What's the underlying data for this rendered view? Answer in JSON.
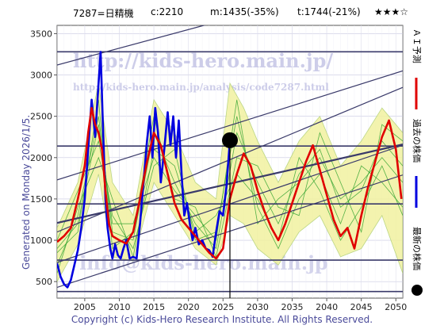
{
  "header": {
    "code": "7287=日精機",
    "current": "c:2210",
    "medium": "m:1435(-35%)",
    "target": "t:1744(-21%)",
    "rating": "★★★☆"
  },
  "side_label": "Generated on Monday 2026/1/5.",
  "footer": "Copyright (c) Kids-Hero Research Institute. All Rights Reserved.",
  "watermarks": {
    "site": "http://kids-hero.main.jp/",
    "page": "http://kids-hero.main.jp/analysis/code7287.html",
    "email": "info@kids-hero.main.jp"
  },
  "legend": [
    {
      "label": "ＡＩ予測",
      "color": "#e00000",
      "marker": "line"
    },
    {
      "label": "過去の株価",
      "color": "#0000e0",
      "marker": "line"
    },
    {
      "label": "最新の株価",
      "color": "#000000",
      "marker": "dot"
    }
  ],
  "colors": {
    "grid": "#c8c8e0",
    "trend_line": "#3a3a6a",
    "band_fill": "#f2f2a0",
    "band_stroke": "#b0d070",
    "sim_line": "#2ca02c",
    "past": "#0000e0",
    "forecast": "#e00000"
  },
  "chart_data": {
    "type": "line",
    "xlim": [
      2001,
      2051
    ],
    "ylim": [
      300,
      3600
    ],
    "xticks": [
      2005,
      2010,
      2015,
      2020,
      2025,
      2030,
      2035,
      2040,
      2045,
      2050
    ],
    "yticks": [
      500,
      1000,
      1500,
      2000,
      2500,
      3000,
      3500
    ],
    "grid": true,
    "legend_position": "right-vertical",
    "latest": {
      "x": 2026.0,
      "y": 2210
    },
    "horizontal_levels": [
      3280,
      2140,
      1440,
      760,
      380
    ],
    "channel_lines": [
      {
        "x": [
          2001,
          2051
        ],
        "y": [
          430,
          1790
        ]
      },
      {
        "x": [
          2001,
          2051
        ],
        "y": [
          730,
          2150
        ]
      },
      {
        "x": [
          2001,
          2051
        ],
        "y": [
          1100,
          2850
        ]
      },
      {
        "x": [
          2001,
          2051
        ],
        "y": [
          1730,
          3050
        ]
      },
      {
        "x": [
          2001,
          2024
        ],
        "y": [
          3120,
          3640
        ]
      },
      {
        "x": [
          2001,
          2051
        ],
        "y": [
          1210,
          2160
        ]
      }
    ],
    "series": [
      {
        "name": "過去の株価",
        "x": [
          2001.0,
          2001.5,
          2002.0,
          2002.5,
          2003.0,
          2003.5,
          2004.0,
          2004.5,
          2005.0,
          2005.5,
          2006.0,
          2006.5,
          2007.0,
          2007.3,
          2007.6,
          2008.0,
          2008.3,
          2008.7,
          2009.0,
          2009.4,
          2009.8,
          2010.2,
          2010.6,
          2011.0,
          2011.5,
          2012.0,
          2012.5,
          2013.0,
          2013.5,
          2014.0,
          2014.4,
          2014.8,
          2015.2,
          2015.6,
          2016.0,
          2016.5,
          2017.0,
          2017.4,
          2017.8,
          2018.2,
          2018.6,
          2019.0,
          2019.4,
          2019.8,
          2020.2,
          2020.6,
          2021.0,
          2021.5,
          2022.0,
          2022.5,
          2023.0,
          2023.5,
          2024.0,
          2024.5,
          2025.0,
          2025.5,
          2026.0
        ],
        "y": [
          720,
          560,
          470,
          430,
          520,
          700,
          880,
          1150,
          1500,
          2100,
          2700,
          2250,
          2900,
          3280,
          2450,
          1500,
          1150,
          900,
          780,
          950,
          820,
          780,
          900,
          1000,
          780,
          800,
          780,
          1200,
          1700,
          2200,
          2500,
          2000,
          2600,
          2300,
          1700,
          2100,
          2550,
          2150,
          2500,
          2000,
          2450,
          1800,
          1300,
          1450,
          1200,
          1000,
          1150,
          950,
          1000,
          900,
          880,
          800,
          1100,
          1350,
          1300,
          1650,
          2210
        ]
      },
      {
        "name": "ＡＩ予測",
        "x": [
          2001.0,
          2002.0,
          2003.0,
          2004.0,
          2005.0,
          2005.5,
          2006.0,
          2006.5,
          2007.0,
          2007.5,
          2008.0,
          2008.5,
          2009.0,
          2010.0,
          2011.0,
          2012.0,
          2013.0,
          2014.0,
          2015.0,
          2016.0,
          2017.0,
          2018.0,
          2019.0,
          2020.0,
          2021.0,
          2022.0,
          2023.0,
          2024.0,
          2025.0,
          2026.0,
          2027.0,
          2028.0,
          2029.0,
          2030.0,
          2031.0,
          2032.0,
          2033.0,
          2034.0,
          2035.0,
          2036.0,
          2037.0,
          2038.0,
          2039.0,
          2040.0,
          2041.0,
          2042.0,
          2043.0,
          2044.0,
          2045.0,
          2046.0,
          2047.0,
          2048.0,
          2049.0,
          2050.0,
          2050.8
        ],
        "y": [
          980,
          1050,
          1150,
          1500,
          1900,
          2300,
          2600,
          2400,
          2300,
          2100,
          1600,
          1200,
          1050,
          1000,
          960,
          1100,
          1500,
          1950,
          2300,
          2150,
          1800,
          1450,
          1250,
          1150,
          1050,
          950,
          850,
          780,
          900,
          1500,
          1800,
          2050,
          1900,
          1600,
          1350,
          1150,
          1000,
          1200,
          1450,
          1700,
          1950,
          2150,
          1850,
          1550,
          1250,
          1050,
          1150,
          900,
          1300,
          1650,
          1950,
          2250,
          2450,
          2100,
          1500
        ]
      }
    ],
    "simulations": [
      {
        "x": [
          2001,
          2004,
          2007,
          2009,
          2012,
          2015,
          2018,
          2021,
          2024,
          2027,
          2030,
          2033,
          2036,
          2039,
          2042,
          2045,
          2048,
          2051
        ],
        "y": [
          700,
          1300,
          2500,
          1100,
          1000,
          2300,
          1700,
          1200,
          900,
          2300,
          1700,
          1200,
          1800,
          2100,
          1400,
          1600,
          2200,
          1900
        ]
      },
      {
        "x": [
          2001,
          2004,
          2007,
          2009,
          2012,
          2015,
          2018,
          2021,
          2024,
          2027,
          2030,
          2033,
          2036,
          2039,
          2042,
          2045,
          2048,
          2051
        ],
        "y": [
          1000,
          1600,
          2200,
          1300,
          900,
          1900,
          2100,
          1000,
          1100,
          2500,
          1400,
          900,
          1500,
          1800,
          1200,
          1900,
          1700,
          1400
        ]
      },
      {
        "x": [
          2001,
          2004,
          2007,
          2009,
          2012,
          2015,
          2018,
          2021,
          2024,
          2027,
          2030,
          2033,
          2036,
          2039,
          2042,
          2045,
          2048,
          2051
        ],
        "y": [
          850,
          1100,
          2700,
          900,
          1100,
          2500,
          1500,
          1400,
          800,
          2000,
          1900,
          1400,
          1300,
          2300,
          1700,
          1100,
          2400,
          2200
        ]
      },
      {
        "x": [
          2001,
          2004,
          2007,
          2009,
          2012,
          2015,
          2018,
          2021,
          2024,
          2027,
          2030,
          2033,
          2036,
          2039,
          2042,
          2045,
          2048,
          2051
        ],
        "y": [
          600,
          1400,
          2000,
          1500,
          800,
          2100,
          1900,
          1100,
          1300,
          1800,
          1500,
          1000,
          2000,
          1600,
          1000,
          1400,
          1900,
          1300
        ]
      },
      {
        "x": [
          2001,
          2004,
          2007,
          2009,
          2012,
          2015,
          2018,
          2021,
          2024,
          2027,
          2030,
          2033,
          2036,
          2039,
          2042,
          2045,
          2048,
          2051
        ],
        "y": [
          900,
          1200,
          2400,
          1200,
          1200,
          2000,
          1600,
          1300,
          1000,
          2700,
          1200,
          1500,
          1700,
          2000,
          1500,
          1700,
          2000,
          1700
        ]
      }
    ],
    "band": {
      "x": [
        2001,
        2004,
        2007,
        2009,
        2012,
        2015,
        2018,
        2021,
        2024,
        2026,
        2028,
        2030,
        2033,
        2036,
        2039,
        2042,
        2045,
        2048,
        2051
      ],
      "upper": [
        1150,
        1700,
        2900,
        1700,
        1300,
        2700,
        2300,
        1700,
        1500,
        2900,
        2600,
        2200,
        1700,
        2200,
        2500,
        1900,
        2200,
        2600,
        2300
      ],
      "lower": [
        500,
        950,
        1800,
        800,
        750,
        1700,
        1300,
        900,
        700,
        1300,
        1200,
        900,
        700,
        1100,
        1300,
        800,
        900,
        1300,
        600
      ]
    }
  }
}
